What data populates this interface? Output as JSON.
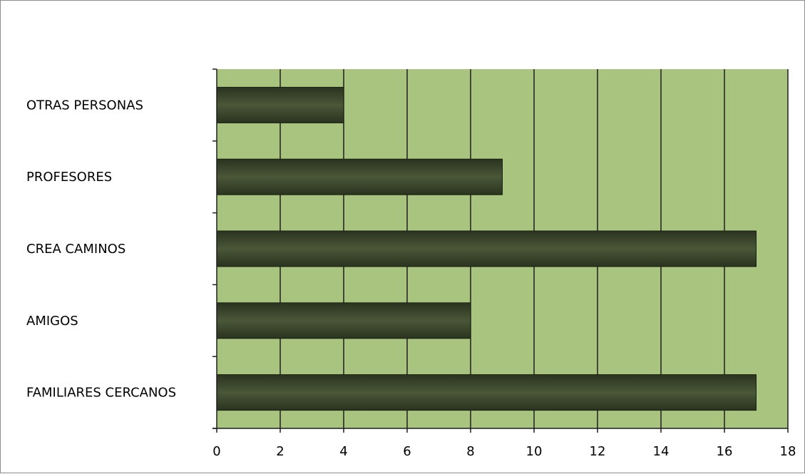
{
  "chart_data": {
    "type": "bar",
    "orientation": "horizontal",
    "categories": [
      "OTRAS PERSONAS",
      "PROFESORES",
      "CREA CAMINOS",
      "AMIGOS",
      "FAMILIARES CERCANOS"
    ],
    "values": [
      4,
      9,
      17,
      8,
      17
    ],
    "xlim": [
      0,
      18
    ],
    "xticks": [
      "0",
      "2",
      "4",
      "6",
      "8",
      "10",
      "12",
      "14",
      "16",
      "18"
    ],
    "title": "",
    "xlabel": "",
    "ylabel": "",
    "grid": "vertical",
    "legend": "none",
    "colors": {
      "plot_background": "#a9c47f",
      "bar_fill_dark": "#2a331f",
      "bar_fill_light": "#4a5738",
      "gridline": "#1f1f1f",
      "axis": "#1f1f1f"
    }
  }
}
